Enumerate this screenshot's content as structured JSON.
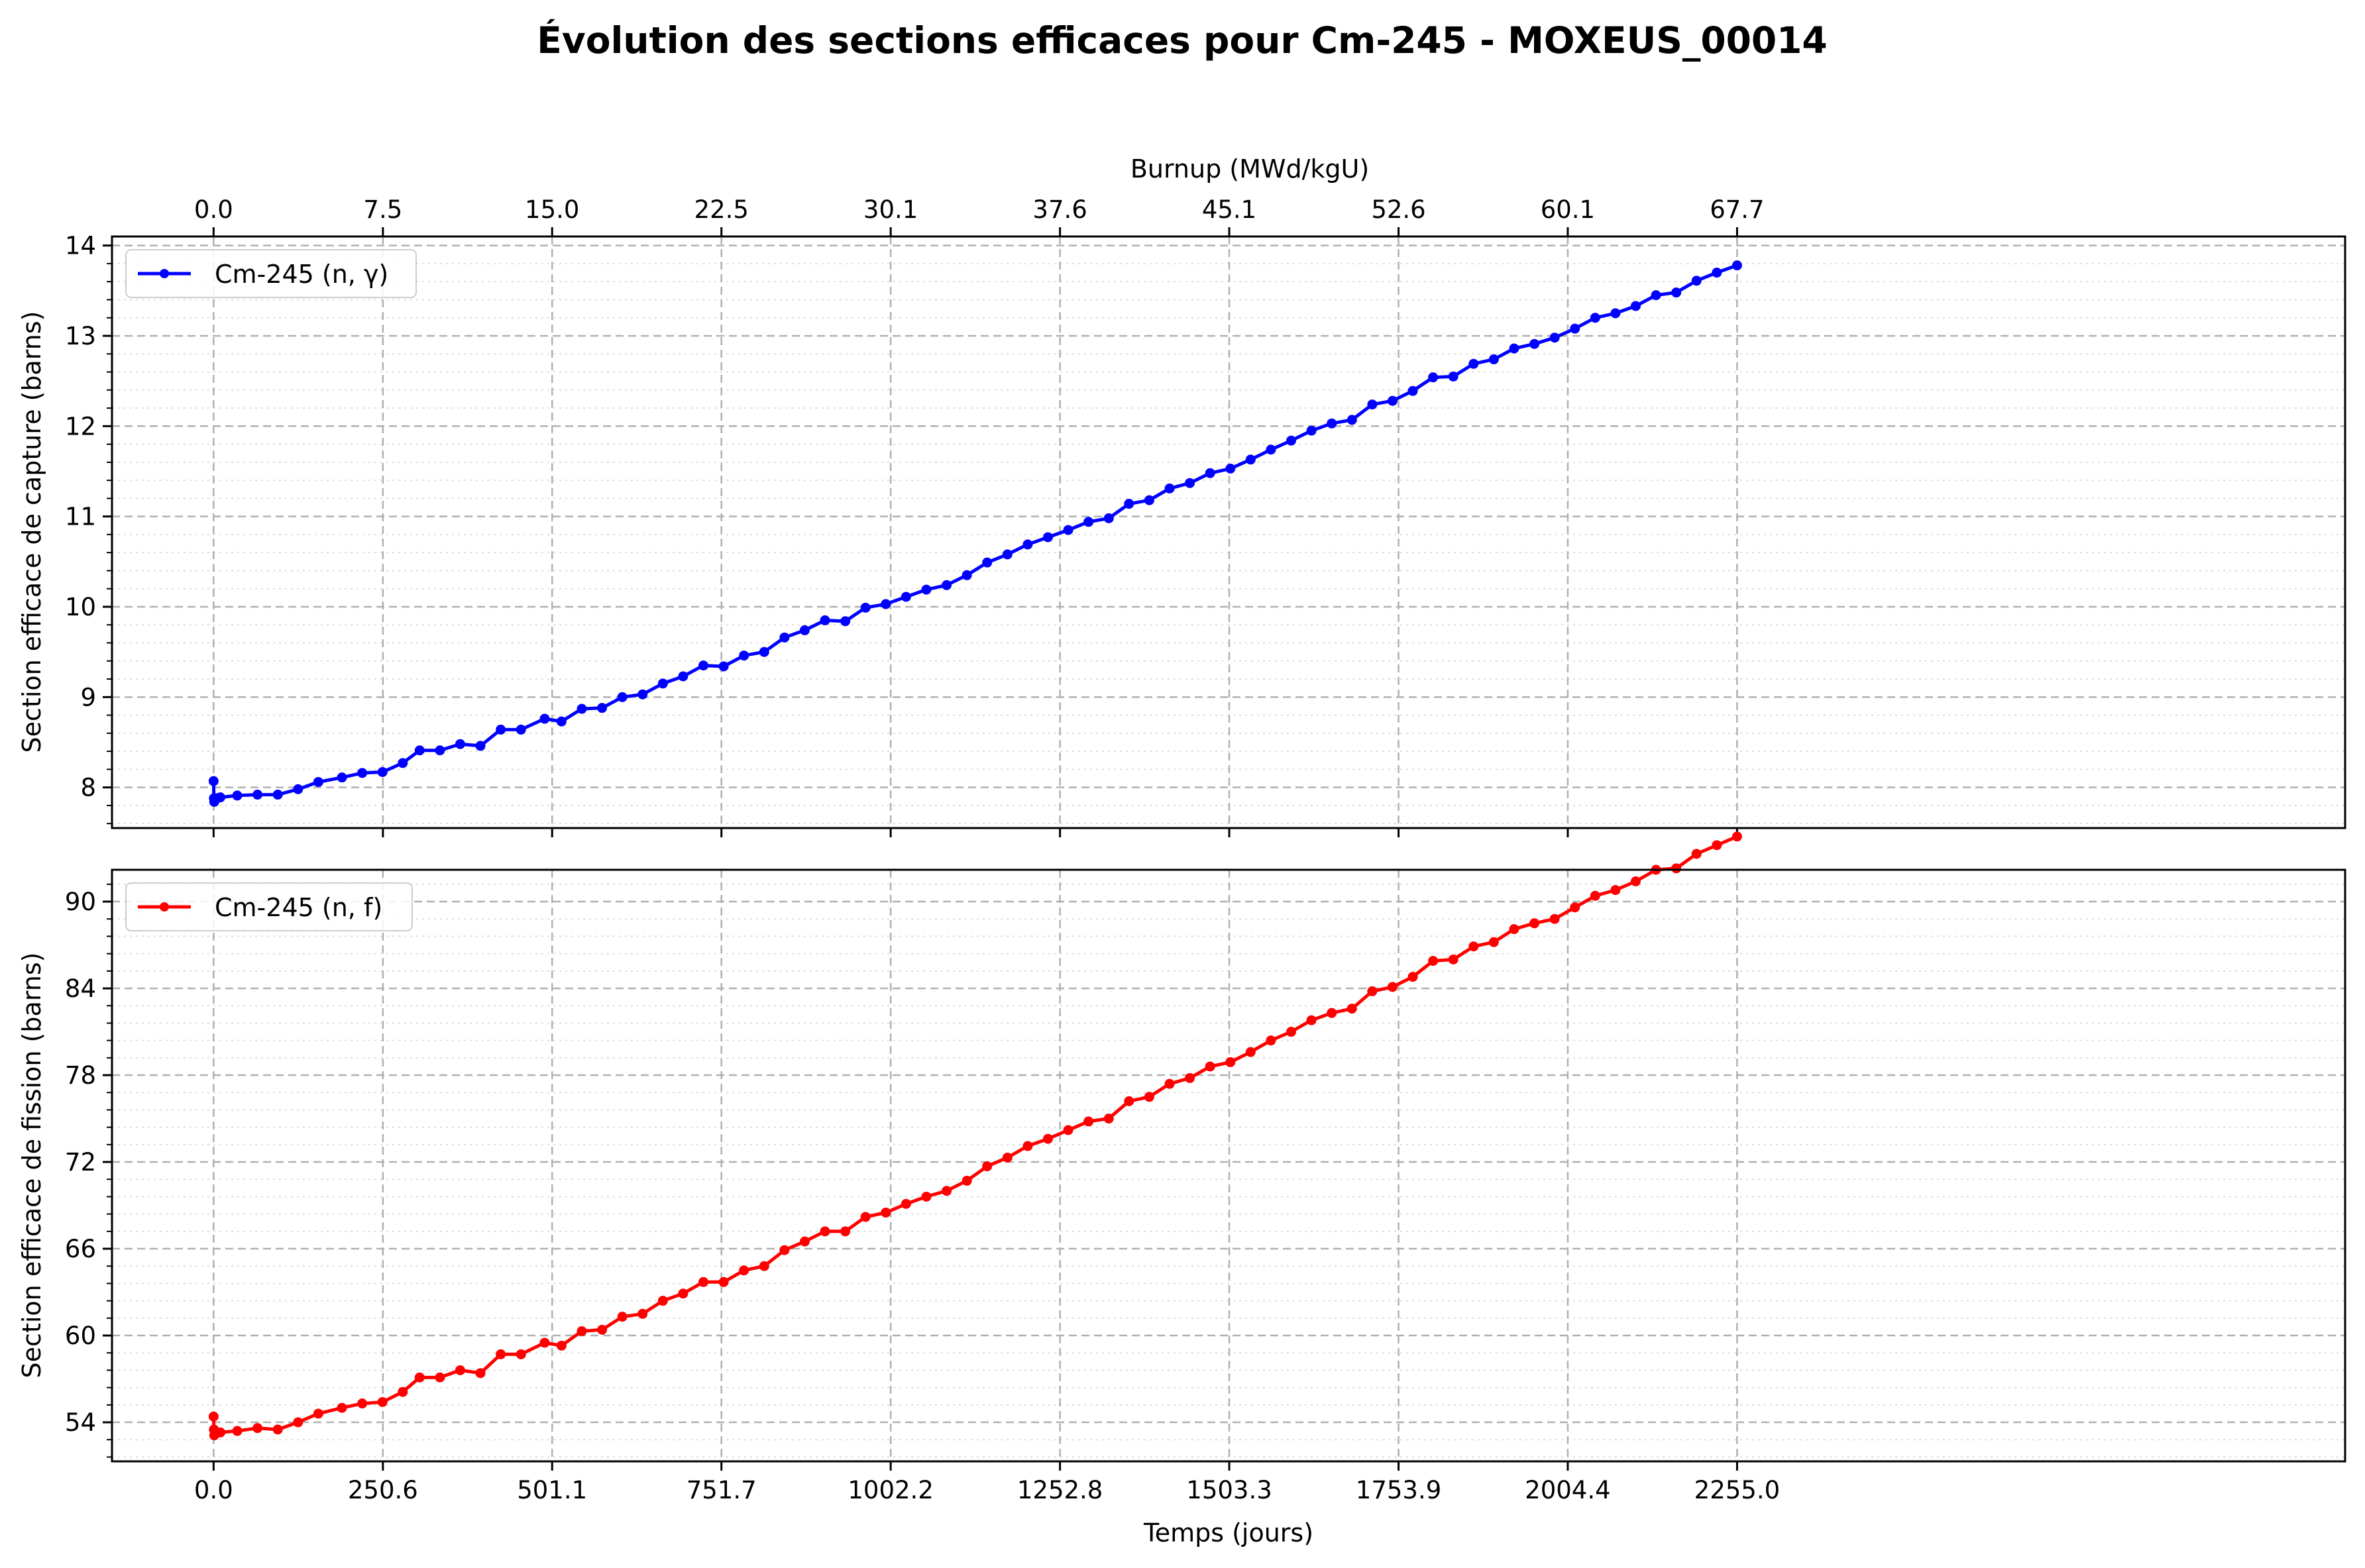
{
  "chart_data": [
    {
      "type": "line",
      "title": "Évolution des sections efficaces pour Cm-245 - MOXEUS_00014",
      "xlabel": "",
      "ylabel": "Section efficace de capture (barns)",
      "x2label": "Burnup (MWd/kgU)",
      "xlim": [
        -150.4,
        3155.0
      ],
      "ylim": [
        7.55,
        14.1
      ],
      "x2ticks": [
        "0.0",
        "7.5",
        "15.0",
        "22.5",
        "30.1",
        "37.6",
        "45.1",
        "52.6",
        "60.1",
        "67.7"
      ],
      "yticks": [
        "8",
        "9",
        "10",
        "11",
        "12",
        "13",
        "14"
      ],
      "grid": true,
      "legend_position": "upper-left",
      "color": "#0000ff",
      "series": [
        {
          "name": "Cm-245 (n, γ)",
          "x": [
            0,
            0.5,
            1,
            2,
            5,
            10,
            35,
            65,
            95,
            125,
            155,
            190,
            220,
            250,
            280,
            305,
            335,
            365,
            395,
            425,
            455,
            490,
            515,
            545,
            575,
            605,
            635,
            665,
            695,
            725,
            755,
            785,
            815,
            845,
            875,
            905,
            935,
            965,
            995,
            1025,
            1055,
            1085,
            1115,
            1145,
            1175,
            1205,
            1235,
            1265,
            1295,
            1325,
            1355,
            1385,
            1415,
            1445,
            1475,
            1505,
            1535,
            1565,
            1595,
            1625,
            1655,
            1685,
            1715,
            1745,
            1775,
            1805,
            1835,
            1865,
            1895,
            1925,
            1955,
            1985,
            2015,
            2045,
            2075,
            2105,
            2135,
            2165,
            2195,
            2225,
            2255
          ],
          "values": [
            8.07,
            7.88,
            7.84,
            7.86,
            7.88,
            7.89,
            7.91,
            7.92,
            7.92,
            7.98,
            8.06,
            8.11,
            8.16,
            8.17,
            8.27,
            8.41,
            8.41,
            8.48,
            8.46,
            8.64,
            8.64,
            8.76,
            8.73,
            8.87,
            8.88,
            9.0,
            9.03,
            9.15,
            9.23,
            9.35,
            9.34,
            9.46,
            9.5,
            9.66,
            9.74,
            9.85,
            9.84,
            9.99,
            10.03,
            10.11,
            10.19,
            10.24,
            10.35,
            10.49,
            10.58,
            10.69,
            10.77,
            10.85,
            10.94,
            10.98,
            11.14,
            11.18,
            11.31,
            11.37,
            11.48,
            11.53,
            11.63,
            11.74,
            11.84,
            11.95,
            12.03,
            12.07,
            12.24,
            12.28,
            12.39,
            12.54,
            12.55,
            12.69,
            12.74,
            12.86,
            12.91,
            12.98,
            13.08,
            13.2,
            13.25,
            13.33,
            13.45,
            13.48,
            13.61,
            13.7,
            13.78
          ]
        }
      ]
    },
    {
      "type": "line",
      "title": "",
      "xlabel": "Temps (jours)",
      "ylabel": "Section efficace de fission (barns)",
      "xlim": [
        -150.4,
        3155.0
      ],
      "ylim": [
        51.3,
        92.2
      ],
      "xticks": [
        "0.0",
        "250.6",
        "501.1",
        "751.7",
        "1002.2",
        "1252.8",
        "1503.3",
        "1753.9",
        "2004.4",
        "2255.0"
      ],
      "yticks": [
        "54",
        "60",
        "66",
        "72",
        "78",
        "84",
        "90"
      ],
      "grid": true,
      "legend_position": "upper-left",
      "color": "#ff0000",
      "series": [
        {
          "name": "Cm-245 (n, f)",
          "x": [
            0,
            0.5,
            1,
            2,
            5,
            10,
            35,
            65,
            95,
            125,
            155,
            190,
            220,
            250,
            280,
            305,
            335,
            365,
            395,
            425,
            455,
            490,
            515,
            545,
            575,
            605,
            635,
            665,
            695,
            725,
            755,
            785,
            815,
            845,
            875,
            905,
            935,
            965,
            995,
            1025,
            1055,
            1085,
            1115,
            1145,
            1175,
            1205,
            1235,
            1265,
            1295,
            1325,
            1355,
            1385,
            1415,
            1445,
            1475,
            1505,
            1535,
            1565,
            1595,
            1625,
            1655,
            1685,
            1715,
            1745,
            1775,
            1805,
            1835,
            1865,
            1895,
            1925,
            1955,
            1985,
            2015,
            2045,
            2075,
            2105,
            2135,
            2165,
            2195,
            2225,
            2255
          ],
          "values": [
            54.4,
            53.5,
            53.1,
            53.2,
            53.3,
            53.3,
            53.4,
            53.6,
            53.5,
            54.0,
            54.6,
            55.0,
            55.3,
            55.4,
            56.1,
            57.1,
            57.1,
            57.6,
            57.4,
            58.7,
            58.7,
            59.5,
            59.3,
            60.3,
            60.4,
            61.3,
            61.5,
            62.4,
            62.9,
            63.7,
            63.7,
            64.5,
            64.8,
            65.9,
            66.5,
            67.2,
            67.2,
            68.2,
            68.5,
            69.1,
            69.6,
            70.0,
            70.7,
            71.7,
            72.3,
            73.1,
            73.6,
            74.2,
            74.8,
            75.0,
            76.2,
            76.5,
            77.4,
            77.8,
            78.6,
            78.9,
            79.6,
            80.4,
            81.0,
            81.8,
            82.3,
            82.6,
            83.8,
            84.1,
            84.8,
            85.9,
            86.0,
            86.9,
            87.2,
            88.1,
            88.5,
            88.8,
            89.6,
            90.4,
            90.8,
            91.4,
            92.2,
            92.3,
            93.3,
            93.9,
            94.5
          ]
        }
      ]
    }
  ]
}
